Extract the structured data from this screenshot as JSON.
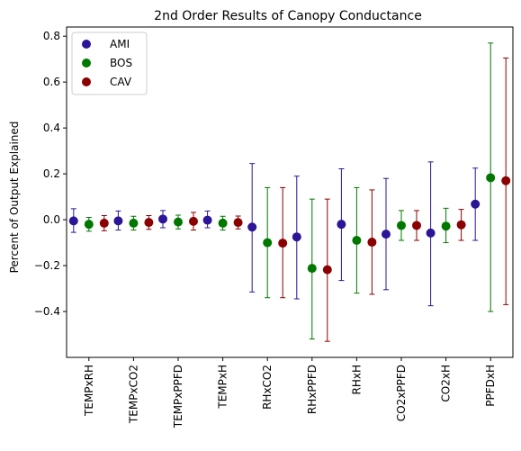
{
  "chart_data": {
    "type": "scatter",
    "title": "2nd Order Results of Canopy Conductance",
    "xlabel": "",
    "ylabel": "Percent of Output Explained",
    "categories": [
      "TEMPxRH",
      "TEMPxCO2",
      "TEMPxPPFD",
      "TEMPxH",
      "RHxCO2",
      "RHxPPFD",
      "RHxH",
      "CO2xPPFD",
      "CO2xH",
      "PPFDxH"
    ],
    "ylim": [
      -0.6,
      0.84
    ],
    "yticks": [
      -0.4,
      -0.2,
      0.0,
      0.2,
      0.4,
      0.6,
      0.8
    ],
    "ytick_labels": [
      "−0.4",
      "−0.2",
      "0.0",
      "0.2",
      "0.4",
      "0.6",
      "0.8"
    ],
    "grid": false,
    "legend_position": "top-left",
    "series": [
      {
        "name": "AMI",
        "color": "#2c1596",
        "values": [
          -0.005,
          -0.005,
          0.003,
          -0.002,
          -0.032,
          -0.075,
          -0.02,
          -0.063,
          -0.058,
          0.068
        ],
        "err_low": [
          -0.055,
          -0.045,
          -0.035,
          -0.035,
          -0.315,
          -0.345,
          -0.265,
          -0.305,
          -0.375,
          -0.09
        ],
        "err_high": [
          0.048,
          0.038,
          0.04,
          0.038,
          0.245,
          0.19,
          0.222,
          0.18,
          0.252,
          0.225
        ]
      },
      {
        "name": "BOS",
        "color": "#007800",
        "values": [
          -0.02,
          -0.015,
          -0.01,
          -0.015,
          -0.1,
          -0.212,
          -0.09,
          -0.025,
          -0.028,
          0.183
        ],
        "err_low": [
          -0.05,
          -0.045,
          -0.04,
          -0.045,
          -0.34,
          -0.52,
          -0.32,
          -0.09,
          -0.1,
          -0.4
        ],
        "err_high": [
          0.01,
          0.015,
          0.02,
          0.015,
          0.14,
          0.09,
          0.14,
          0.04,
          0.05,
          0.77
        ]
      },
      {
        "name": "CAV",
        "color": "#8b0000",
        "values": [
          -0.015,
          -0.012,
          -0.007,
          -0.012,
          -0.102,
          -0.218,
          -0.098,
          -0.025,
          -0.022,
          0.17
        ],
        "err_low": [
          -0.048,
          -0.042,
          -0.045,
          -0.04,
          -0.34,
          -0.53,
          -0.325,
          -0.09,
          -0.09,
          -0.37
        ],
        "err_high": [
          0.018,
          0.018,
          0.032,
          0.016,
          0.14,
          0.09,
          0.13,
          0.04,
          0.045,
          0.705
        ]
      }
    ]
  }
}
